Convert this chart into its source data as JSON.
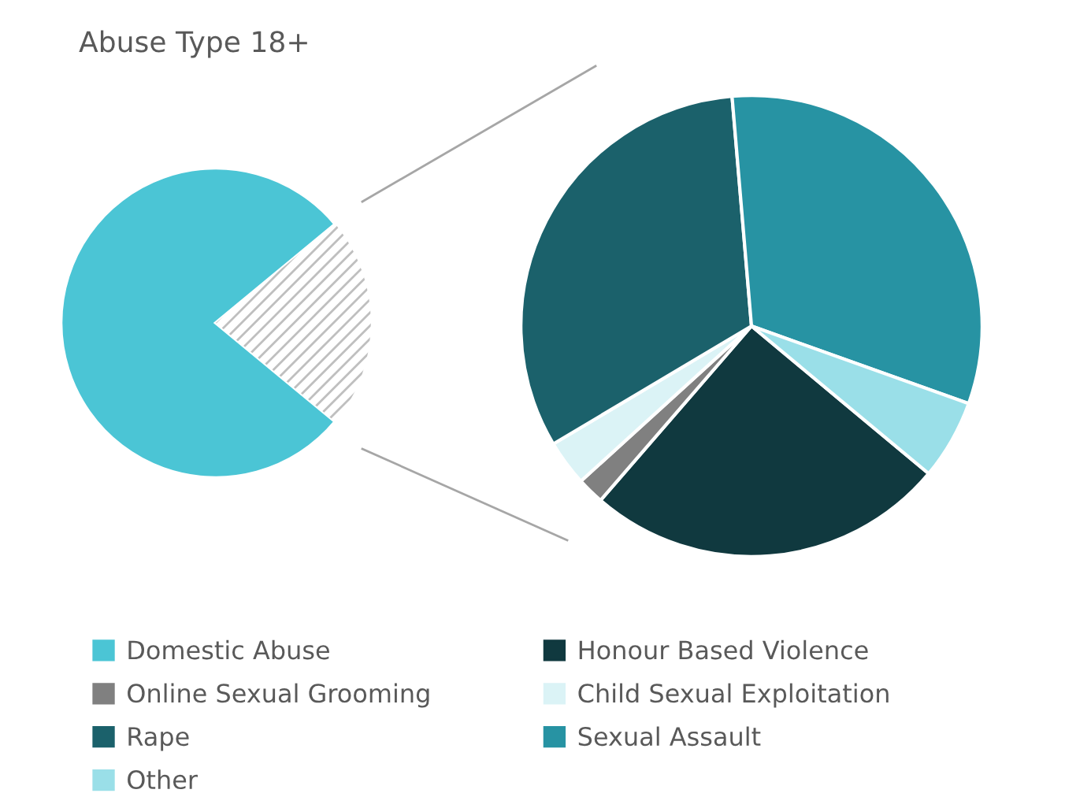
{
  "chart_data": [
    {
      "type": "pie",
      "title": "Abuse Type 18+",
      "categories": [
        "Domestic Abuse",
        null
      ],
      "values": [
        78,
        22
      ],
      "colors": [
        "#4bc5d5",
        "#bfbfbf"
      ],
      "legend": "bottom"
    },
    {
      "type": "pie",
      "categories": [
        "Honour Based Violence",
        "Online Sexual Grooming",
        "Child Sexual Exploitation",
        "Rape",
        "Sexual Assault",
        "Other"
      ],
      "values": [
        25.3,
        1.9,
        3.2,
        32.2,
        31.8,
        5.6
      ],
      "colors": [
        "#10393f",
        "#808080",
        "#dbf3f6",
        "#1b616b",
        "#2793a3",
        "#9adfe8"
      ],
      "legend": "bottom"
    }
  ]
}
